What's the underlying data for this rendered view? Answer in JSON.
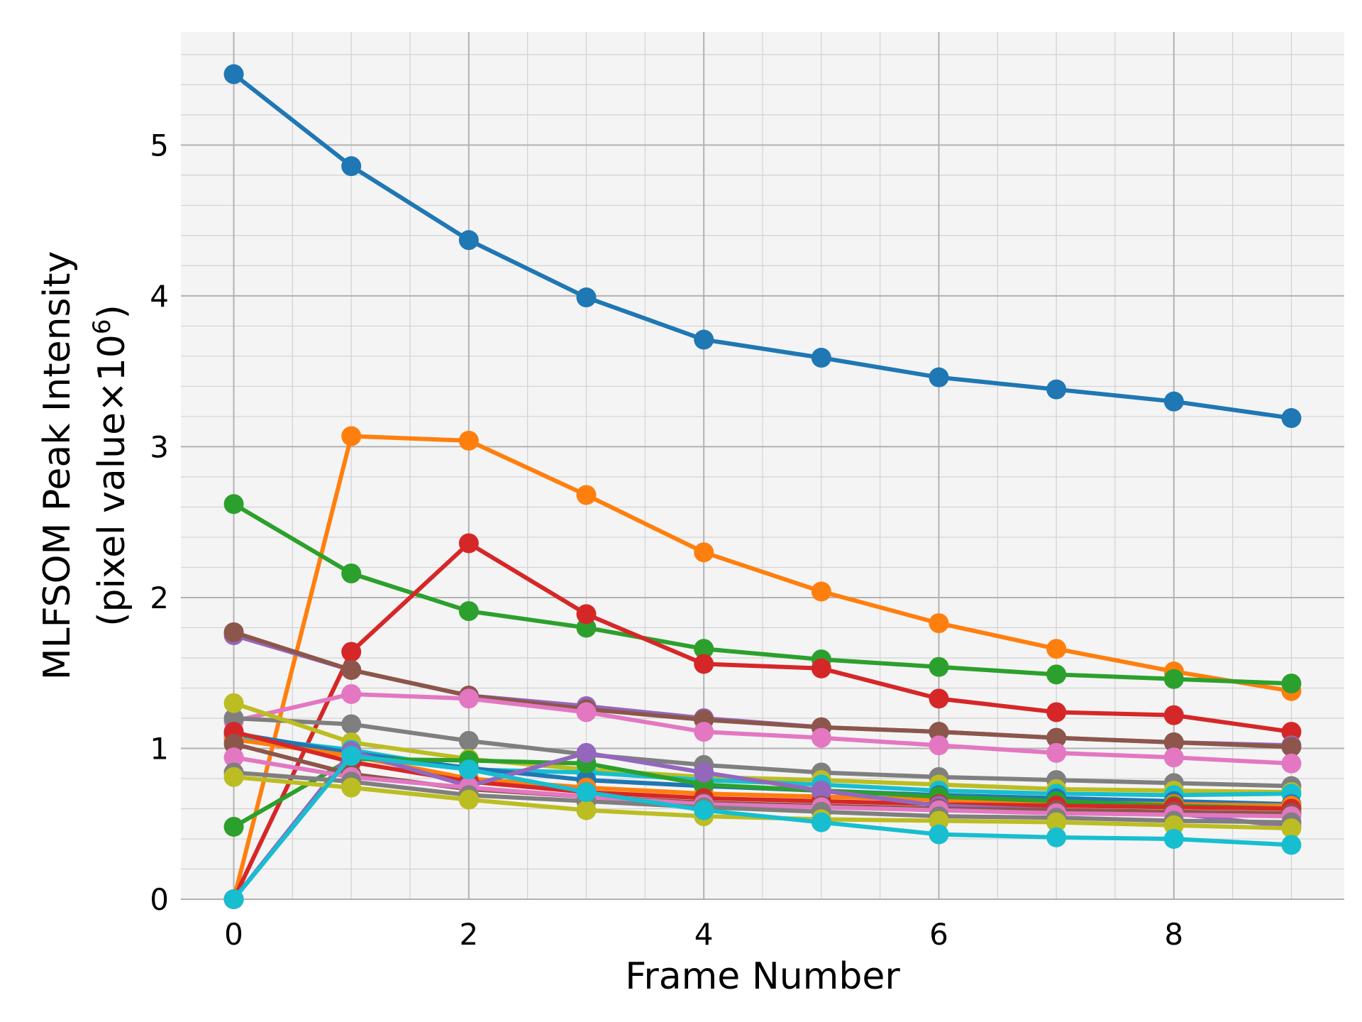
{
  "chart_data": {
    "type": "line",
    "title": "",
    "xlabel": "Frame Number",
    "ylabel_line1": "MLFSOM Peak Intensity",
    "ylabel_line2_prefix": "(pixel value×10",
    "ylabel_line2_exp": "6",
    "ylabel_line2_suffix": ")",
    "xlim": [
      -0.45,
      9.45
    ],
    "ylim": [
      0,
      5.75
    ],
    "xticks": [
      0,
      2,
      4,
      6,
      8
    ],
    "yticks": [
      0,
      1,
      2,
      3,
      4,
      5
    ],
    "x_minor_step": 0.5,
    "y_minor_step": 0.2,
    "grid": true,
    "legend": "none",
    "background": "#f4f4f4",
    "x": [
      0,
      1,
      2,
      3,
      4,
      5,
      6,
      7,
      8,
      9
    ],
    "series": [
      {
        "color": "#1f77b4",
        "values": [
          5.47,
          4.86,
          4.37,
          3.99,
          3.71,
          3.59,
          3.46,
          3.38,
          3.3,
          3.19
        ]
      },
      {
        "color": "#ff7f0e",
        "values": [
          0.0,
          3.07,
          3.04,
          2.68,
          2.3,
          2.04,
          1.83,
          1.66,
          1.51,
          1.38
        ]
      },
      {
        "color": "#2ca02c",
        "values": [
          2.62,
          2.16,
          1.91,
          1.8,
          1.66,
          1.59,
          1.54,
          1.49,
          1.46,
          1.43
        ]
      },
      {
        "color": "#d62728",
        "values": [
          0.0,
          1.64,
          2.36,
          1.89,
          1.56,
          1.53,
          1.33,
          1.24,
          1.22,
          1.11
        ]
      },
      {
        "color": "#9467bd",
        "values": [
          1.75,
          1.52,
          1.35,
          1.28,
          1.2,
          1.14,
          1.11,
          1.07,
          1.04,
          1.02
        ]
      },
      {
        "color": "#8c564b",
        "values": [
          1.77,
          1.52,
          1.35,
          1.26,
          1.19,
          1.14,
          1.11,
          1.07,
          1.04,
          1.01
        ]
      },
      {
        "color": "#e377c2",
        "values": [
          1.18,
          1.36,
          1.33,
          1.24,
          1.11,
          1.07,
          1.02,
          0.97,
          0.94,
          0.9
        ]
      },
      {
        "color": "#7f7f7f",
        "values": [
          1.2,
          1.16,
          1.05,
          0.96,
          0.89,
          0.84,
          0.81,
          0.79,
          0.77,
          0.75
        ]
      },
      {
        "color": "#bcbd22",
        "values": [
          1.3,
          1.04,
          0.93,
          0.86,
          0.81,
          0.79,
          0.76,
          0.73,
          0.72,
          0.71
        ]
      },
      {
        "color": "#17becf",
        "values": [
          1.08,
          0.99,
          0.86,
          0.84,
          0.79,
          0.76,
          0.72,
          0.7,
          0.69,
          0.7
        ]
      },
      {
        "color": "#1f77b4",
        "values": [
          1.1,
          0.97,
          0.87,
          0.79,
          0.75,
          0.72,
          0.69,
          0.67,
          0.65,
          0.63
        ]
      },
      {
        "color": "#ff7f0e",
        "values": [
          1.06,
          0.95,
          0.8,
          0.74,
          0.7,
          0.68,
          0.66,
          0.64,
          0.63,
          0.62
        ]
      },
      {
        "color": "#2ca02c",
        "values": [
          0.48,
          0.93,
          0.92,
          0.9,
          0.76,
          0.72,
          0.68,
          0.65,
          0.62,
          0.6
        ]
      },
      {
        "color": "#d62728",
        "values": [
          1.11,
          0.91,
          0.78,
          0.71,
          0.67,
          0.65,
          0.63,
          0.62,
          0.61,
          0.6
        ]
      },
      {
        "color": "#9467bd",
        "values": [
          0.0,
          0.98,
          0.75,
          0.97,
          0.84,
          0.72,
          0.62,
          0.59,
          0.57,
          0.48
        ]
      },
      {
        "color": "#8c564b",
        "values": [
          1.03,
          0.83,
          0.73,
          0.68,
          0.64,
          0.62,
          0.6,
          0.59,
          0.58,
          0.57
        ]
      },
      {
        "color": "#e377c2",
        "values": [
          0.94,
          0.81,
          0.74,
          0.68,
          0.63,
          0.61,
          0.59,
          0.57,
          0.56,
          0.55
        ]
      },
      {
        "color": "#7f7f7f",
        "values": [
          0.84,
          0.78,
          0.69,
          0.65,
          0.61,
          0.58,
          0.55,
          0.54,
          0.52,
          0.51
        ]
      },
      {
        "color": "#bcbd22",
        "values": [
          0.81,
          0.74,
          0.66,
          0.59,
          0.55,
          0.53,
          0.52,
          0.51,
          0.49,
          0.47
        ]
      },
      {
        "color": "#17becf",
        "values": [
          0.0,
          0.95,
          0.86,
          0.71,
          0.59,
          0.51,
          0.43,
          0.41,
          0.4,
          0.36
        ]
      }
    ]
  }
}
